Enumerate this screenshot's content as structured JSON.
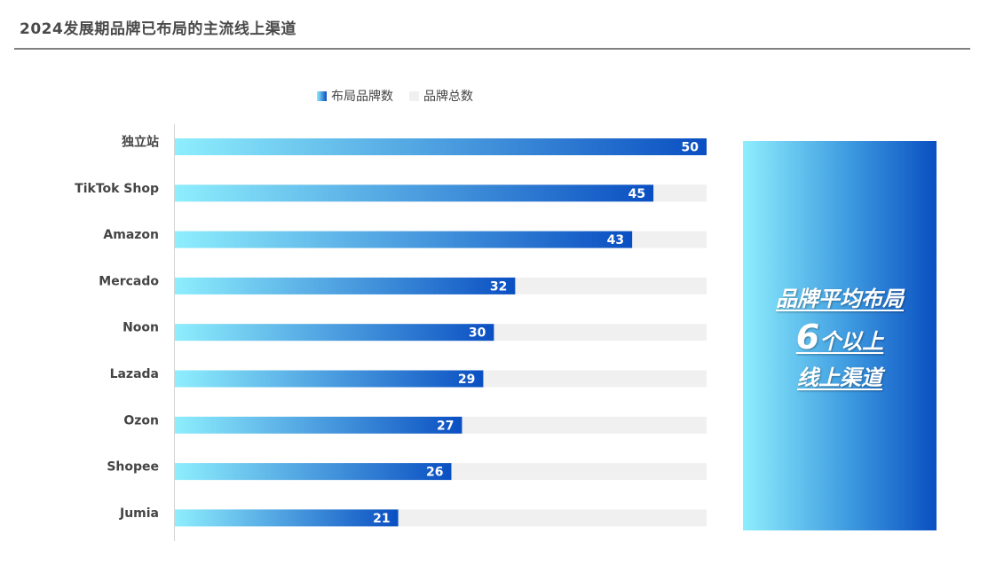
{
  "title": "2024发展期品牌已布局的主流线上渠道",
  "chart_data": {
    "type": "bar",
    "orientation": "horizontal",
    "categories": [
      "独立站",
      "TikTok Shop",
      "Amazon",
      "Mercado",
      "Noon",
      "Lazada",
      "Ozon",
      "Shopee",
      "Jumia"
    ],
    "series": [
      {
        "name": "布局品牌数",
        "values": [
          50,
          45,
          43,
          32,
          30,
          29,
          27,
          26,
          21
        ]
      },
      {
        "name": "品牌总数",
        "values": [
          50,
          50,
          50,
          50,
          50,
          50,
          50,
          50,
          50
        ]
      }
    ],
    "xlim": [
      0,
      50
    ],
    "legend_position": "top",
    "colors": {
      "gradient_start": "#8eeefd",
      "gradient_end": "#0a4fc2",
      "total": "#f0f0f0"
    }
  },
  "callout": {
    "line1": "品牌平均布局",
    "number": "6",
    "line2_suffix": "个以上",
    "line3": "线上渠道"
  }
}
